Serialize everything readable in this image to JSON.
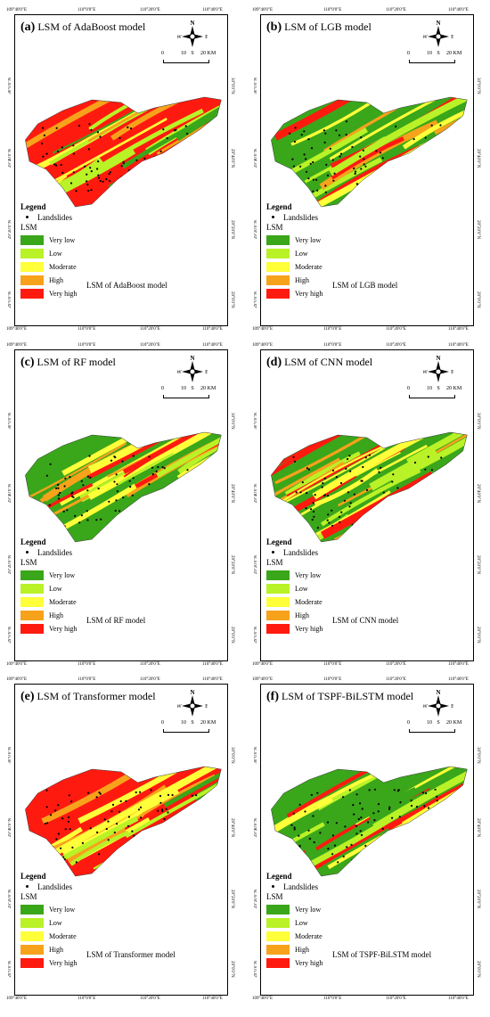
{
  "legend": {
    "title": "Legend",
    "landslides_label": "Landslides",
    "lsm_label": "LSM",
    "classes": [
      {
        "label": "Very low",
        "color": "#3aa61a"
      },
      {
        "label": "Low",
        "color": "#b9f227"
      },
      {
        "label": "Moderate",
        "color": "#ffff3a"
      },
      {
        "label": "High",
        "color": "#f7a21b"
      },
      {
        "label": "Very high",
        "color": "#ff1a10"
      }
    ]
  },
  "compass": {
    "n": "N",
    "s": "S",
    "e": "E",
    "w": "W"
  },
  "scale": {
    "labels": [
      "0",
      "10",
      "20 KM"
    ]
  },
  "ticks": {
    "top": [
      "109°40'0\"E",
      "110°0'0\"E",
      "110°20'0\"E",
      "110°40'0\"E"
    ],
    "bottom": [
      "109°40'0\"E",
      "110°0'0\"E",
      "110°20'0\"E",
      "110°40'0\"E"
    ],
    "side": [
      "30°0'0\"N",
      "29°40'0\"N",
      "29°20'0\"N",
      "29°0'0\"N"
    ]
  },
  "panels": [
    {
      "letter": "(a)",
      "title": "LSM of AdaBoost model",
      "center_label": "LSM of AdaBoost model",
      "palette": [
        "#ff1a10",
        "#ffff3a",
        "#b9f227",
        "#3aa61a",
        "#f7a21b"
      ]
    },
    {
      "letter": "(b)",
      "title": "LSM of LGB model",
      "center_label": "LSM of LGB model",
      "palette": [
        "#3aa61a",
        "#b9f227",
        "#ff1a10",
        "#ffff3a",
        "#f7a21b"
      ]
    },
    {
      "letter": "(c)",
      "title": "LSM of RF model",
      "center_label": "LSM of RF model",
      "palette": [
        "#3aa61a",
        "#b9f227",
        "#ff1a10",
        "#ffff3a",
        "#f7a21b"
      ]
    },
    {
      "letter": "(d)",
      "title": "LSM of CNN model",
      "center_label": "LSM of CNN model",
      "palette": [
        "#3aa61a",
        "#ff1a10",
        "#b9f227",
        "#ffff3a",
        "#f7a21b"
      ]
    },
    {
      "letter": "(e)",
      "title": "LSM of Transformer model",
      "center_label": "LSM of Transformer model",
      "palette": [
        "#ff1a10",
        "#f7a21b",
        "#b9f227",
        "#ffff3a",
        "#3aa61a"
      ]
    },
    {
      "letter": "(f)",
      "title": "LSM of TSPF-BiLSTM model",
      "center_label": "LSM of TSPF-BiLSTM model",
      "palette": [
        "#3aa61a",
        "#3aa61a",
        "#ff1a10",
        "#b9f227",
        "#ffff3a"
      ]
    }
  ]
}
